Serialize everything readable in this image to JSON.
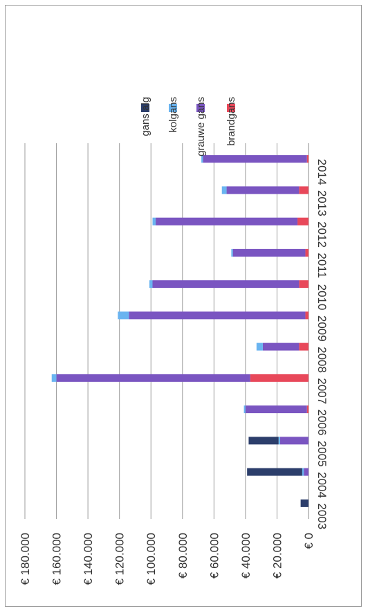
{
  "chart_data": {
    "type": "bar",
    "stacked": true,
    "orientation": "vertical",
    "rotated": "90deg clockwise",
    "categories": [
      "2003",
      "2004",
      "2005",
      "2006",
      "2007",
      "2008",
      "2009",
      "2010",
      "2011",
      "2012",
      "2013",
      "2014"
    ],
    "series": [
      {
        "name": "brandgans",
        "color": "#e8485a",
        "values": [
          0,
          0,
          0,
          1000,
          37000,
          6000,
          2000,
          6000,
          2000,
          7000,
          6000,
          1000
        ]
      },
      {
        "name": "grauwe gans",
        "color": "#7a55c1",
        "values": [
          0,
          3000,
          18000,
          39000,
          123000,
          23000,
          112000,
          93000,
          46000,
          90000,
          46000,
          66000
        ]
      },
      {
        "name": "kolgans",
        "color": "#6ab4f0",
        "values": [
          0,
          1000,
          1000,
          1000,
          3000,
          4000,
          7000,
          2000,
          1000,
          2000,
          3000,
          1000
        ]
      },
      {
        "name": "gans alg",
        "color": "#2c3e6b",
        "values": [
          5000,
          35000,
          19000,
          0,
          0,
          0,
          0,
          0,
          0,
          0,
          0,
          0
        ]
      }
    ],
    "ylim": [
      0,
      180000
    ],
    "y_ticks": [
      "€ 0",
      "€ 20.000",
      "€ 40.000",
      "€ 60.000",
      "€ 80.000",
      "€ 100.000",
      "€ 120.000",
      "€ 140.000",
      "€ 160.000",
      "€ 180.000"
    ],
    "grid": true,
    "legend_position": "right (top in rotated image)",
    "legend_order": [
      "gans alg",
      "kolgans",
      "grauwe gans",
      "brandgans"
    ],
    "title": "",
    "xlabel": "",
    "ylabel": ""
  }
}
